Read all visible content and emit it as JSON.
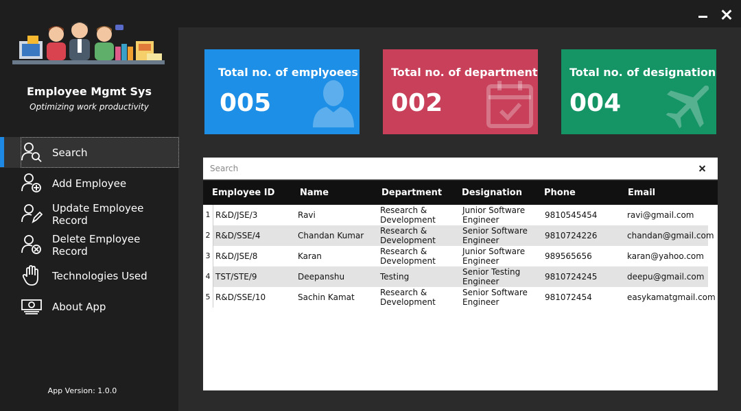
{
  "app": {
    "name": "Employee Mgmt Sys",
    "tagline": "Optimizing work productivity",
    "version": "App Version: 1.0.0"
  },
  "sidebar": {
    "items": [
      {
        "label": "Search",
        "icon": "search-user-icon",
        "active": true
      },
      {
        "label": "Add Employee",
        "icon": "add-user-icon"
      },
      {
        "label": "Update Employee Record",
        "icon": "edit-user-icon"
      },
      {
        "label": "Delete Employee Record",
        "icon": "delete-user-icon"
      },
      {
        "label": "Technologies Used",
        "icon": "hand-icon"
      },
      {
        "label": "About App",
        "icon": "money-icon"
      }
    ]
  },
  "cards": [
    {
      "title": "Total no. of emplyoees",
      "value": "005",
      "color": "#1e8fe6",
      "icon": "person-icon"
    },
    {
      "title": "Total no. of departments",
      "value": "002",
      "color": "#c8405a",
      "icon": "calendar-check-icon"
    },
    {
      "title": "Total no. of designations",
      "value": "004",
      "color": "#159466",
      "icon": "airplane-icon"
    }
  ],
  "search": {
    "placeholder": "Search",
    "value": ""
  },
  "table": {
    "columns": [
      "Employee ID",
      "Name",
      "Department",
      "Designation",
      "Phone",
      "Email"
    ],
    "rows": [
      {
        "num": "1",
        "id": "R&D/JSE/3",
        "name": "Ravi",
        "dept": "Research & Development",
        "desig": "Junior Software Engineer",
        "phone": "9810545454",
        "email": "ravi@gmail.com"
      },
      {
        "num": "2",
        "id": "R&D/SSE/4",
        "name": "Chandan Kumar",
        "dept": "Research & Development",
        "desig": "Senior Software Engineer",
        "phone": "9810724226",
        "email": "chandan@gmail.com"
      },
      {
        "num": "3",
        "id": "R&D/JSE/8",
        "name": "Karan",
        "dept": "Research & Development",
        "desig": "Junior Software Engineer",
        "phone": "989565656",
        "email": "karan@yahoo.com"
      },
      {
        "num": "4",
        "id": "TST/STE/9",
        "name": "Deepanshu",
        "dept": "Testing",
        "desig": "Senior Testing Engineer",
        "phone": "9810724245",
        "email": "deepu@gmail.com"
      },
      {
        "num": "5",
        "id": "R&D/SSE/10",
        "name": "Sachin Kamat",
        "dept": "Research & Development",
        "desig": "Senior Software Engineer",
        "phone": "981072454",
        "email": "easykamatgmail.com"
      }
    ]
  }
}
